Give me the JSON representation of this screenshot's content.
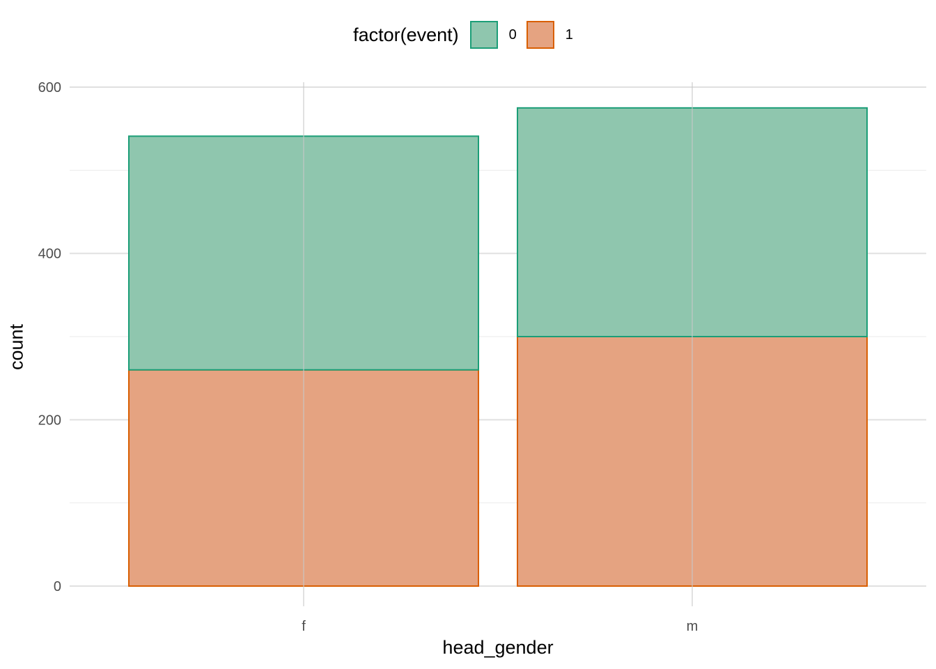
{
  "legend": {
    "title": "factor(event)",
    "items": [
      {
        "label": "0",
        "fill": "#8fc6ae",
        "stroke": "#1b9e77"
      },
      {
        "label": "1",
        "fill": "#e5a381",
        "stroke": "#d95f02"
      }
    ]
  },
  "chart_data": {
    "type": "bar",
    "stacked": true,
    "categories": [
      "f",
      "m"
    ],
    "series": [
      {
        "name": "1",
        "values": [
          260,
          300
        ]
      },
      {
        "name": "0",
        "values": [
          281,
          275
        ]
      }
    ],
    "totals": [
      541,
      575
    ],
    "xlabel": "head_gender",
    "ylabel": "count",
    "ylim": [
      -30,
      600
    ],
    "yticks": [
      0,
      200,
      400,
      600
    ],
    "yticklabels": [
      "0",
      "200",
      "400",
      "600"
    ],
    "grid": true,
    "legend_position": "top",
    "colors": {
      "0_fill": "#8fc6ae",
      "0_stroke": "#1b9e77",
      "1_fill": "#e5a381",
      "1_stroke": "#d95f02",
      "grid": "#e5e5e5"
    }
  }
}
